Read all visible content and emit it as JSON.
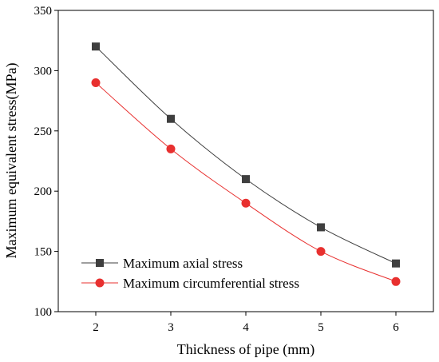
{
  "chart_data": {
    "type": "line",
    "x": [
      2,
      3,
      4,
      5,
      6
    ],
    "xlabel": "Thickness of pipe (mm)",
    "ylabel": "Maximum equivalent stress(MPa)",
    "xlim": [
      1.5,
      6.5
    ],
    "ylim": [
      100,
      350
    ],
    "xticks": [
      "2",
      "3",
      "4",
      "5",
      "6"
    ],
    "yticks": [
      "100",
      "150",
      "200",
      "250",
      "300",
      "350"
    ],
    "ytick_values": [
      100,
      150,
      200,
      250,
      300,
      350
    ],
    "series": [
      {
        "name": "Maximum axial stress",
        "values": [
          320,
          260,
          210,
          170,
          140
        ],
        "color": "#3f3f3f",
        "marker": "square"
      },
      {
        "name": "Maximum circumferential stress",
        "values": [
          290,
          235,
          190,
          150,
          125
        ],
        "color": "#e8302f",
        "marker": "circle"
      }
    ],
    "legend_position": "bottom-left",
    "grid": false
  }
}
